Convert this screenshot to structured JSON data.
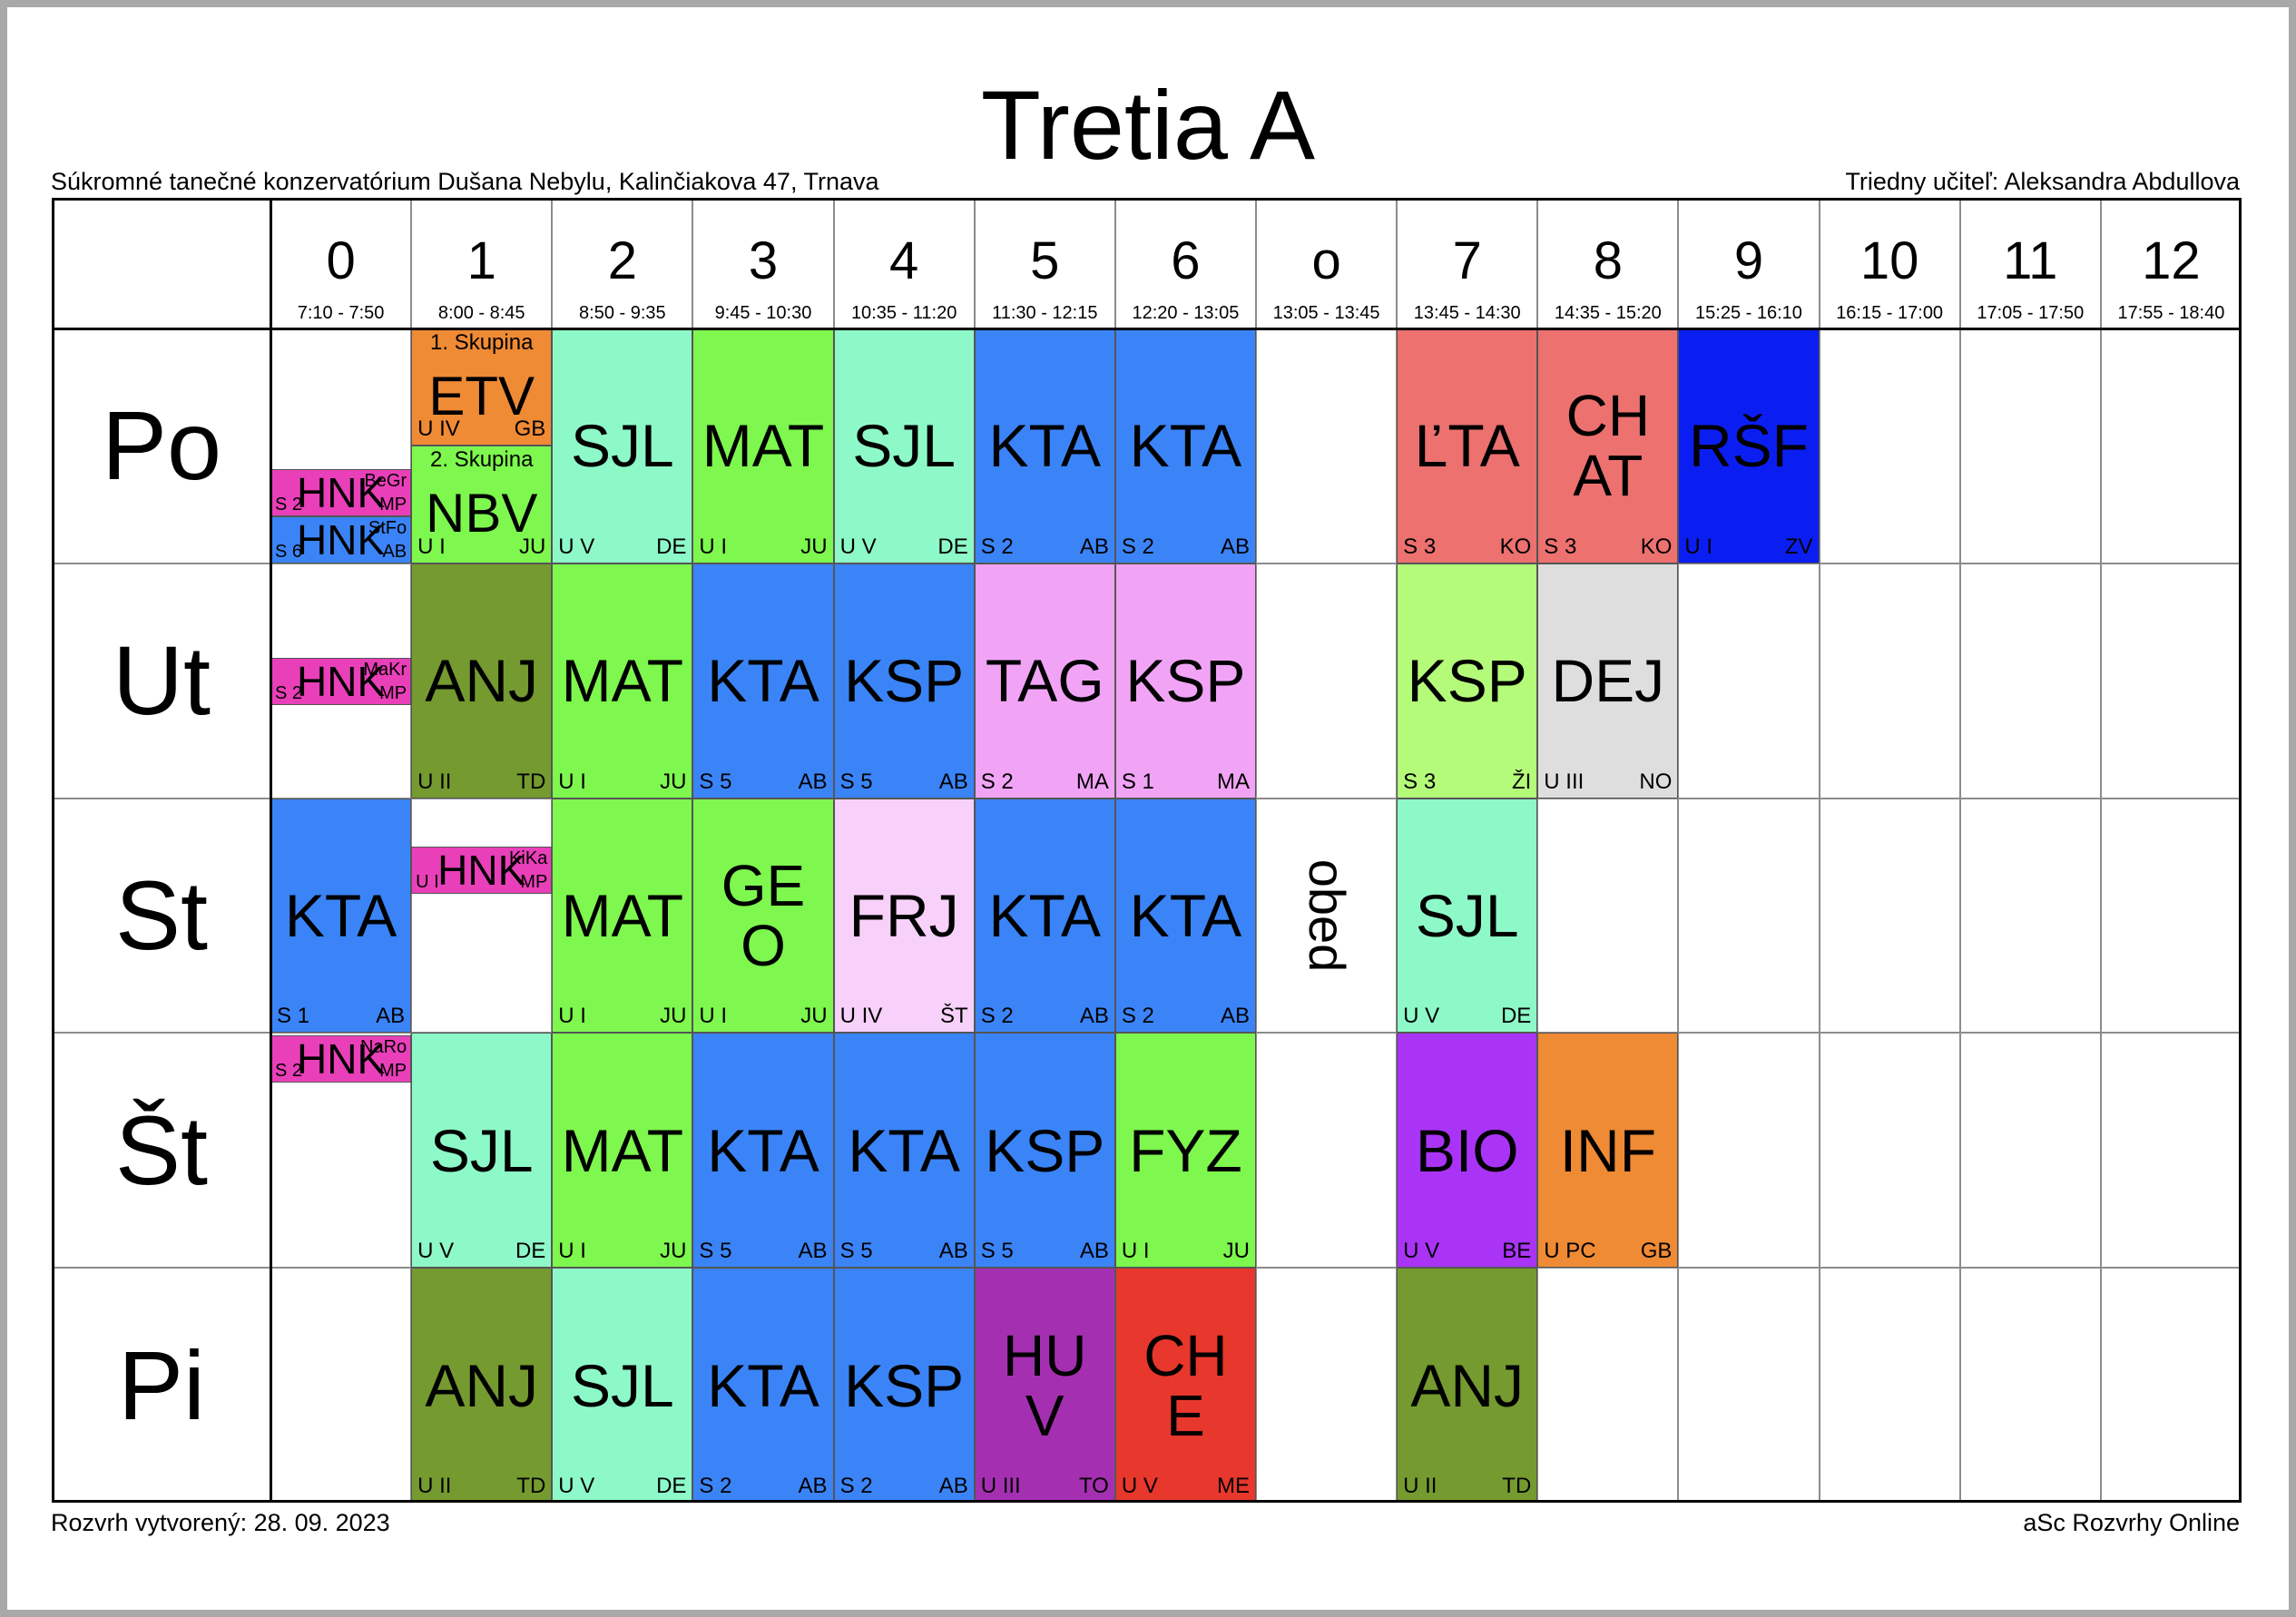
{
  "title": "Tretia A",
  "school": "Súkromné tanečné konzervatórium Dušana Nebylu, Kalinčiakova 47, Trnava",
  "class_teacher": "Triedny učiteľ: Aleksandra Abdullova",
  "created": "Rozvrh vytvorený: 28. 09. 2023",
  "brand": "aSc Rozvrhy Online",
  "lunch_label": "obed",
  "periods": [
    {
      "num": "0",
      "time": "7:10 - 7:50"
    },
    {
      "num": "1",
      "time": "8:00 - 8:45"
    },
    {
      "num": "2",
      "time": "8:50 - 9:35"
    },
    {
      "num": "3",
      "time": "9:45 - 10:30"
    },
    {
      "num": "4",
      "time": "10:35 - 11:20"
    },
    {
      "num": "5",
      "time": "11:30 - 12:15"
    },
    {
      "num": "6",
      "time": "12:20 - 13:05"
    },
    {
      "num": "o",
      "time": "13:05 - 13:45"
    },
    {
      "num": "7",
      "time": "13:45 - 14:30"
    },
    {
      "num": "8",
      "time": "14:35 - 15:20"
    },
    {
      "num": "9",
      "time": "15:25 - 16:10"
    },
    {
      "num": "10",
      "time": "16:15 - 17:00"
    },
    {
      "num": "11",
      "time": "17:05 - 17:50"
    },
    {
      "num": "12",
      "time": "17:55 - 18:40"
    }
  ],
  "days": [
    "Po",
    "Ut",
    "St",
    "Št",
    "Pi"
  ],
  "lessons": [
    {
      "day": 0,
      "col": 1,
      "part": "top",
      "subject": "ETV",
      "room": "U IV",
      "teacher": "GB",
      "group": "1. Skupina",
      "color": "#ef8a35"
    },
    {
      "day": 0,
      "col": 1,
      "part": "bottom",
      "subject": "NBV",
      "room": "U I",
      "teacher": "JU",
      "group": "2. Skupina",
      "color": "#7ef74e"
    },
    {
      "day": 0,
      "col": 0,
      "part": "small",
      "slot": 0,
      "subject": "HNK",
      "room": "S 2",
      "teacher": "MP",
      "teacher2": "BeGr",
      "color": "#e93fb9"
    },
    {
      "day": 0,
      "col": 0,
      "part": "small",
      "slot": 1,
      "subject": "HNK",
      "room": "S 6",
      "teacher": "AB",
      "teacher2": "StFo",
      "color": "#3b84f7"
    },
    {
      "day": 0,
      "col": 2,
      "subject": "SJL",
      "room": "U V",
      "teacher": "DE",
      "color": "#8ef9c8"
    },
    {
      "day": 0,
      "col": 3,
      "subject": "MAT",
      "room": "U I",
      "teacher": "JU",
      "color": "#7ef74e"
    },
    {
      "day": 0,
      "col": 4,
      "subject": "SJL",
      "room": "U V",
      "teacher": "DE",
      "color": "#8ef9c8"
    },
    {
      "day": 0,
      "col": 5,
      "subject": "KTA",
      "room": "S 2",
      "teacher": "AB",
      "color": "#3b84f7"
    },
    {
      "day": 0,
      "col": 6,
      "subject": "KTA",
      "room": "S 2",
      "teacher": "AB",
      "color": "#3b84f7"
    },
    {
      "day": 0,
      "col": 8,
      "subject": "ĽTA",
      "room": "S 3",
      "teacher": "KO",
      "color": "#ec716f"
    },
    {
      "day": 0,
      "col": 9,
      "subject": "CHAT",
      "lines": [
        "CH",
        "AT"
      ],
      "room": "S 3",
      "teacher": "KO",
      "color": "#ec716f"
    },
    {
      "day": 0,
      "col": 10,
      "subject": "RŠF",
      "room": "U I",
      "teacher": "ZV",
      "color": "#0b1ef2"
    },
    {
      "day": 1,
      "col": 0,
      "part": "small",
      "slot": 0,
      "subject": "HNK",
      "room": "S 2",
      "teacher": "MP",
      "teacher2": "MaKr",
      "color": "#e93fb9"
    },
    {
      "day": 1,
      "col": 1,
      "subject": "ANJ",
      "room": "U II",
      "teacher": "TD",
      "color": "#759a2f"
    },
    {
      "day": 1,
      "col": 2,
      "subject": "MAT",
      "room": "U I",
      "teacher": "JU",
      "color": "#7ef74e"
    },
    {
      "day": 1,
      "col": 3,
      "subject": "KTA",
      "room": "S 5",
      "teacher": "AB",
      "color": "#3b84f7"
    },
    {
      "day": 1,
      "col": 4,
      "subject": "KSP",
      "room": "S 5",
      "teacher": "AB",
      "color": "#3b84f7"
    },
    {
      "day": 1,
      "col": 5,
      "subject": "TAG",
      "room": "S 2",
      "teacher": "MA",
      "color": "#f1a4f6"
    },
    {
      "day": 1,
      "col": 6,
      "subject": "KSP",
      "room": "S 1",
      "teacher": "MA",
      "color": "#f1a4f6"
    },
    {
      "day": 1,
      "col": 8,
      "subject": "KSP",
      "room": "S 3",
      "teacher": "ŽI",
      "color": "#b4fb79"
    },
    {
      "day": 1,
      "col": 9,
      "subject": "DEJ",
      "room": "U III",
      "teacher": "NO",
      "color": "#dedede"
    },
    {
      "day": 2,
      "col": 0,
      "subject": "KTA",
      "room": "S 1",
      "teacher": "AB",
      "color": "#3b84f7"
    },
    {
      "day": 2,
      "col": 1,
      "part": "small",
      "slot": 0,
      "subject": "HNK",
      "room": "U I",
      "teacher": "MP",
      "teacher2": "KiKa",
      "color": "#e93fb9"
    },
    {
      "day": 2,
      "col": 2,
      "subject": "MAT",
      "room": "U I",
      "teacher": "JU",
      "color": "#7ef74e"
    },
    {
      "day": 2,
      "col": 3,
      "subject": "GEO",
      "lines": [
        "GE",
        "O"
      ],
      "room": "U I",
      "teacher": "JU",
      "color": "#7ef74e"
    },
    {
      "day": 2,
      "col": 4,
      "subject": "FRJ",
      "room": "U IV",
      "teacher": "ŠT",
      "color": "#f7d1f9"
    },
    {
      "day": 2,
      "col": 5,
      "subject": "KTA",
      "room": "S 2",
      "teacher": "AB",
      "color": "#3b84f7"
    },
    {
      "day": 2,
      "col": 6,
      "subject": "KTA",
      "room": "S 2",
      "teacher": "AB",
      "color": "#3b84f7"
    },
    {
      "day": 2,
      "col": 8,
      "subject": "SJL",
      "room": "U V",
      "teacher": "DE",
      "color": "#8ef9c8"
    },
    {
      "day": 3,
      "col": 0,
      "part": "small",
      "slot": 0,
      "subject": "HNK",
      "room": "S 2",
      "teacher": "MP",
      "teacher2": "NaRo",
      "color": "#e93fb9"
    },
    {
      "day": 3,
      "col": 1,
      "subject": "SJL",
      "room": "U V",
      "teacher": "DE",
      "color": "#8ef9c8"
    },
    {
      "day": 3,
      "col": 2,
      "subject": "MAT",
      "room": "U I",
      "teacher": "JU",
      "color": "#7ef74e"
    },
    {
      "day": 3,
      "col": 3,
      "subject": "KTA",
      "room": "S 5",
      "teacher": "AB",
      "color": "#3b84f7"
    },
    {
      "day": 3,
      "col": 4,
      "subject": "KTA",
      "room": "S 5",
      "teacher": "AB",
      "color": "#3b84f7"
    },
    {
      "day": 3,
      "col": 5,
      "subject": "KSP",
      "room": "S 5",
      "teacher": "AB",
      "color": "#3b84f7"
    },
    {
      "day": 3,
      "col": 6,
      "subject": "FYZ",
      "room": "U I",
      "teacher": "JU",
      "color": "#7ef74e"
    },
    {
      "day": 3,
      "col": 8,
      "subject": "BIO",
      "room": "U V",
      "teacher": "BE",
      "color": "#aa34f5"
    },
    {
      "day": 3,
      "col": 9,
      "subject": "INF",
      "room": "U PC",
      "teacher": "GB",
      "color": "#ef8a35"
    },
    {
      "day": 4,
      "col": 1,
      "subject": "ANJ",
      "room": "U II",
      "teacher": "TD",
      "color": "#759a2f"
    },
    {
      "day": 4,
      "col": 2,
      "subject": "SJL",
      "room": "U V",
      "teacher": "DE",
      "color": "#8ef9c8"
    },
    {
      "day": 4,
      "col": 3,
      "subject": "KTA",
      "room": "S 2",
      "teacher": "AB",
      "color": "#3b84f7"
    },
    {
      "day": 4,
      "col": 4,
      "subject": "KSP",
      "room": "S 2",
      "teacher": "AB",
      "color": "#3b84f7"
    },
    {
      "day": 4,
      "col": 5,
      "subject": "HUV",
      "lines": [
        "HU",
        "V"
      ],
      "room": "U III",
      "teacher": "TO",
      "color": "#a52fb1"
    },
    {
      "day": 4,
      "col": 6,
      "subject": "CHE",
      "lines": [
        "CH",
        "E"
      ],
      "room": "U V",
      "teacher": "ME",
      "color": "#e8372c"
    },
    {
      "day": 4,
      "col": 8,
      "subject": "ANJ",
      "room": "U II",
      "teacher": "TD",
      "color": "#759a2f"
    }
  ]
}
